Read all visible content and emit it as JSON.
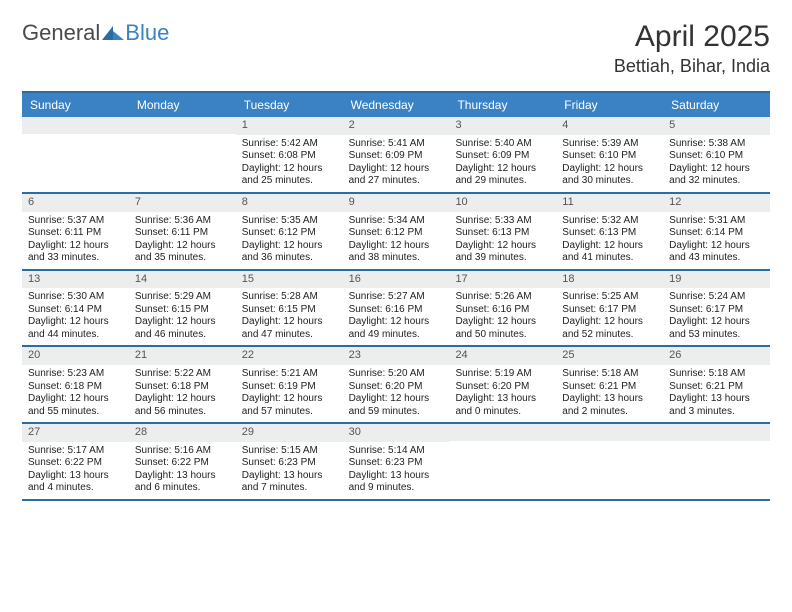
{
  "brand": {
    "part1": "General",
    "part2": "Blue"
  },
  "title": "April 2025",
  "location": "Bettiah, Bihar, India",
  "colors": {
    "header_bg": "#3b82c4",
    "border": "#2b6ca3",
    "daynum_bg": "#eceded",
    "text": "#333333"
  },
  "dayNames": [
    "Sunday",
    "Monday",
    "Tuesday",
    "Wednesday",
    "Thursday",
    "Friday",
    "Saturday"
  ],
  "weeks": [
    [
      null,
      null,
      {
        "n": "1",
        "sr": "Sunrise: 5:42 AM",
        "ss": "Sunset: 6:08 PM",
        "dl": "Daylight: 12 hours and 25 minutes."
      },
      {
        "n": "2",
        "sr": "Sunrise: 5:41 AM",
        "ss": "Sunset: 6:09 PM",
        "dl": "Daylight: 12 hours and 27 minutes."
      },
      {
        "n": "3",
        "sr": "Sunrise: 5:40 AM",
        "ss": "Sunset: 6:09 PM",
        "dl": "Daylight: 12 hours and 29 minutes."
      },
      {
        "n": "4",
        "sr": "Sunrise: 5:39 AM",
        "ss": "Sunset: 6:10 PM",
        "dl": "Daylight: 12 hours and 30 minutes."
      },
      {
        "n": "5",
        "sr": "Sunrise: 5:38 AM",
        "ss": "Sunset: 6:10 PM",
        "dl": "Daylight: 12 hours and 32 minutes."
      }
    ],
    [
      {
        "n": "6",
        "sr": "Sunrise: 5:37 AM",
        "ss": "Sunset: 6:11 PM",
        "dl": "Daylight: 12 hours and 33 minutes."
      },
      {
        "n": "7",
        "sr": "Sunrise: 5:36 AM",
        "ss": "Sunset: 6:11 PM",
        "dl": "Daylight: 12 hours and 35 minutes."
      },
      {
        "n": "8",
        "sr": "Sunrise: 5:35 AM",
        "ss": "Sunset: 6:12 PM",
        "dl": "Daylight: 12 hours and 36 minutes."
      },
      {
        "n": "9",
        "sr": "Sunrise: 5:34 AM",
        "ss": "Sunset: 6:12 PM",
        "dl": "Daylight: 12 hours and 38 minutes."
      },
      {
        "n": "10",
        "sr": "Sunrise: 5:33 AM",
        "ss": "Sunset: 6:13 PM",
        "dl": "Daylight: 12 hours and 39 minutes."
      },
      {
        "n": "11",
        "sr": "Sunrise: 5:32 AM",
        "ss": "Sunset: 6:13 PM",
        "dl": "Daylight: 12 hours and 41 minutes."
      },
      {
        "n": "12",
        "sr": "Sunrise: 5:31 AM",
        "ss": "Sunset: 6:14 PM",
        "dl": "Daylight: 12 hours and 43 minutes."
      }
    ],
    [
      {
        "n": "13",
        "sr": "Sunrise: 5:30 AM",
        "ss": "Sunset: 6:14 PM",
        "dl": "Daylight: 12 hours and 44 minutes."
      },
      {
        "n": "14",
        "sr": "Sunrise: 5:29 AM",
        "ss": "Sunset: 6:15 PM",
        "dl": "Daylight: 12 hours and 46 minutes."
      },
      {
        "n": "15",
        "sr": "Sunrise: 5:28 AM",
        "ss": "Sunset: 6:15 PM",
        "dl": "Daylight: 12 hours and 47 minutes."
      },
      {
        "n": "16",
        "sr": "Sunrise: 5:27 AM",
        "ss": "Sunset: 6:16 PM",
        "dl": "Daylight: 12 hours and 49 minutes."
      },
      {
        "n": "17",
        "sr": "Sunrise: 5:26 AM",
        "ss": "Sunset: 6:16 PM",
        "dl": "Daylight: 12 hours and 50 minutes."
      },
      {
        "n": "18",
        "sr": "Sunrise: 5:25 AM",
        "ss": "Sunset: 6:17 PM",
        "dl": "Daylight: 12 hours and 52 minutes."
      },
      {
        "n": "19",
        "sr": "Sunrise: 5:24 AM",
        "ss": "Sunset: 6:17 PM",
        "dl": "Daylight: 12 hours and 53 minutes."
      }
    ],
    [
      {
        "n": "20",
        "sr": "Sunrise: 5:23 AM",
        "ss": "Sunset: 6:18 PM",
        "dl": "Daylight: 12 hours and 55 minutes."
      },
      {
        "n": "21",
        "sr": "Sunrise: 5:22 AM",
        "ss": "Sunset: 6:18 PM",
        "dl": "Daylight: 12 hours and 56 minutes."
      },
      {
        "n": "22",
        "sr": "Sunrise: 5:21 AM",
        "ss": "Sunset: 6:19 PM",
        "dl": "Daylight: 12 hours and 57 minutes."
      },
      {
        "n": "23",
        "sr": "Sunrise: 5:20 AM",
        "ss": "Sunset: 6:20 PM",
        "dl": "Daylight: 12 hours and 59 minutes."
      },
      {
        "n": "24",
        "sr": "Sunrise: 5:19 AM",
        "ss": "Sunset: 6:20 PM",
        "dl": "Daylight: 13 hours and 0 minutes."
      },
      {
        "n": "25",
        "sr": "Sunrise: 5:18 AM",
        "ss": "Sunset: 6:21 PM",
        "dl": "Daylight: 13 hours and 2 minutes."
      },
      {
        "n": "26",
        "sr": "Sunrise: 5:18 AM",
        "ss": "Sunset: 6:21 PM",
        "dl": "Daylight: 13 hours and 3 minutes."
      }
    ],
    [
      {
        "n": "27",
        "sr": "Sunrise: 5:17 AM",
        "ss": "Sunset: 6:22 PM",
        "dl": "Daylight: 13 hours and 4 minutes."
      },
      {
        "n": "28",
        "sr": "Sunrise: 5:16 AM",
        "ss": "Sunset: 6:22 PM",
        "dl": "Daylight: 13 hours and 6 minutes."
      },
      {
        "n": "29",
        "sr": "Sunrise: 5:15 AM",
        "ss": "Sunset: 6:23 PM",
        "dl": "Daylight: 13 hours and 7 minutes."
      },
      {
        "n": "30",
        "sr": "Sunrise: 5:14 AM",
        "ss": "Sunset: 6:23 PM",
        "dl": "Daylight: 13 hours and 9 minutes."
      },
      null,
      null,
      null
    ]
  ]
}
